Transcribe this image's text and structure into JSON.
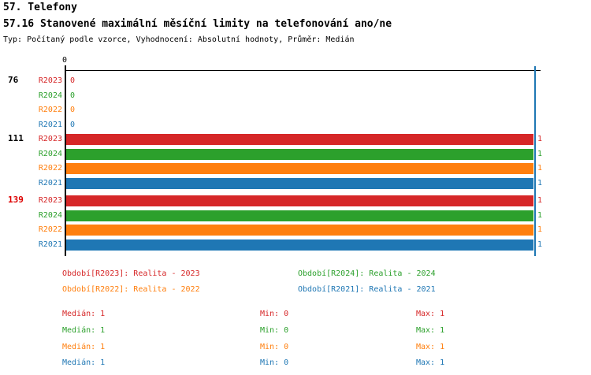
{
  "title_line1": "57. Telefony",
  "title_line2": "57.16 Stanovené maximální měsíční limity na telefonování ano/ne",
  "subtitle": "Typ: Počítaný podle vzorce, Vyhodnocení: Absolutní hodnoty, Průměr: Medián",
  "colors": {
    "red": "#d62728",
    "green": "#2ca02c",
    "orange": "#ff7f0e",
    "blue": "#1f77b4",
    "axis": "#000000",
    "group_highlight": "#dd0000",
    "max_line": "#1f77b4"
  },
  "chart_data": {
    "type": "bar",
    "orientation": "horizontal",
    "xlim": [
      0,
      1
    ],
    "axis_top_tick_label": "0",
    "series": [
      {
        "name": "R2023",
        "color": "#d62728"
      },
      {
        "name": "R2024",
        "color": "#2ca02c"
      },
      {
        "name": "R2022",
        "color": "#ff7f0e"
      },
      {
        "name": "R2021",
        "color": "#1f77b4"
      }
    ],
    "groups": [
      {
        "label": "76",
        "label_color": "#000000",
        "values": [
          0,
          0,
          0,
          0
        ]
      },
      {
        "label": "111",
        "label_color": "#000000",
        "values": [
          1,
          1,
          1,
          1
        ]
      },
      {
        "label": "139",
        "label_color": "#dd0000",
        "values": [
          1,
          1,
          1,
          1
        ]
      }
    ]
  },
  "legend": [
    {
      "label": "Období[R2023]: Realita - 2023",
      "color": "#d62728",
      "col": 0,
      "row": 0
    },
    {
      "label": "Období[R2024]: Realita - 2024",
      "color": "#2ca02c",
      "col": 1,
      "row": 0
    },
    {
      "label": "Období[R2022]: Realita - 2022",
      "color": "#ff7f0e",
      "col": 0,
      "row": 1
    },
    {
      "label": "Období[R2021]: Realita - 2021",
      "color": "#1f77b4",
      "col": 1,
      "row": 1
    }
  ],
  "stats_labels": {
    "median": "Medián",
    "min": "Min",
    "max": "Max"
  },
  "stats": [
    {
      "series": "R2023",
      "color": "#d62728",
      "median": 1,
      "min": 0,
      "max": 1
    },
    {
      "series": "R2024",
      "color": "#2ca02c",
      "median": 1,
      "min": 0,
      "max": 1
    },
    {
      "series": "R2022",
      "color": "#ff7f0e",
      "median": 1,
      "min": 0,
      "max": 1
    },
    {
      "series": "R2021",
      "color": "#1f77b4",
      "median": 1,
      "min": 0,
      "max": 1
    }
  ]
}
